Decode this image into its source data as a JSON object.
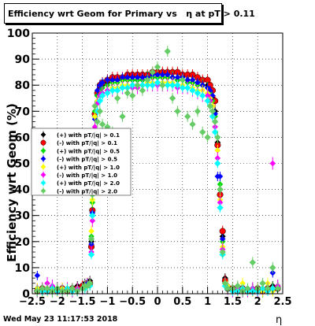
{
  "title": "Efficiency wrt Geom for Primary vs   η at pT > 0.11",
  "timestamp": "Wed May 23 11:17:53 2018",
  "chart_data": {
    "type": "scatter",
    "xlabel": "η",
    "ylabel": "Efficiency wrt Geom (%)",
    "xlim": [
      -2.5,
      2.5
    ],
    "ylim": [
      0,
      100
    ],
    "xticks": [
      -2.5,
      -2,
      -1.5,
      -1,
      -0.5,
      0,
      0.5,
      1,
      1.5,
      2,
      2.5
    ],
    "xtick_labels": [
      "−2.5",
      "−2",
      "−1.5",
      "−1",
      "−0.5",
      "0",
      "0.5",
      "1",
      "1.5",
      "2",
      "2.5"
    ],
    "yticks": [
      0,
      10,
      20,
      30,
      40,
      50,
      60,
      70,
      80,
      90,
      100
    ],
    "grid": true,
    "legend_position": "middle-left",
    "series": [
      {
        "name": "(+) with pT/|q| > 0.1",
        "color": "#000000",
        "x": [
          -2.4,
          -2.3,
          -2.2,
          -2.1,
          -2.0,
          -1.9,
          -1.8,
          -1.7,
          -1.6,
          -1.5,
          -1.45,
          -1.4,
          -1.35,
          -1.32,
          -1.3,
          -1.28,
          -1.25,
          -1.2,
          -1.15,
          -1.1,
          -1.0,
          -0.9,
          -0.8,
          -0.7,
          -0.6,
          -0.5,
          -0.4,
          -0.3,
          -0.2,
          -0.1,
          0.0,
          0.1,
          0.2,
          0.3,
          0.4,
          0.5,
          0.6,
          0.7,
          0.8,
          0.9,
          1.0,
          1.05,
          1.1,
          1.15,
          1.2,
          1.25,
          1.3,
          1.35,
          1.4,
          1.5,
          1.6,
          1.7,
          1.8,
          1.9,
          2.0,
          2.1,
          2.2,
          2.3,
          2.4
        ],
        "y": [
          2,
          1,
          2,
          1,
          1,
          1,
          2,
          2,
          3,
          3,
          4,
          4,
          5,
          20,
          30,
          50,
          68,
          76,
          79,
          80,
          81,
          82,
          82,
          82,
          82,
          82,
          82,
          82,
          82,
          83,
          83,
          83,
          83,
          83,
          82,
          82,
          82,
          81,
          81,
          80,
          80,
          78,
          75,
          70,
          58,
          40,
          22,
          6,
          3,
          2,
          2,
          2,
          1,
          2,
          1,
          2,
          2,
          3,
          3
        ]
      },
      {
        "name": "(-) with pT/|q| > 0.1",
        "color": "#ff0000",
        "x": [
          -2.4,
          -2.3,
          -2.2,
          -2.1,
          -2.0,
          -1.9,
          -1.8,
          -1.7,
          -1.6,
          -1.5,
          -1.45,
          -1.4,
          -1.35,
          -1.32,
          -1.3,
          -1.28,
          -1.25,
          -1.2,
          -1.15,
          -1.1,
          -1.0,
          -0.9,
          -0.8,
          -0.7,
          -0.6,
          -0.5,
          -0.4,
          -0.3,
          -0.2,
          -0.1,
          0.0,
          0.1,
          0.2,
          0.3,
          0.4,
          0.5,
          0.6,
          0.7,
          0.8,
          0.9,
          1.0,
          1.05,
          1.1,
          1.15,
          1.2,
          1.25,
          1.3,
          1.35,
          1.4,
          1.5,
          1.6,
          1.7,
          1.8,
          1.9,
          2.0,
          2.1,
          2.2,
          2.3,
          2.4
        ],
        "y": [
          1,
          2,
          1,
          2,
          1,
          2,
          1,
          2,
          2,
          3,
          3,
          4,
          4,
          18,
          32,
          49,
          69,
          77,
          80,
          81,
          82,
          83,
          83,
          83,
          84,
          84,
          84,
          84,
          84,
          85,
          85,
          85,
          85,
          85,
          85,
          84,
          84,
          84,
          83,
          82,
          82,
          80,
          78,
          74,
          57,
          38,
          24,
          5,
          2,
          2,
          1,
          2,
          1,
          1,
          2,
          1,
          2,
          2,
          2
        ]
      },
      {
        "name": "(+) with pT/|q| > 0.5",
        "color": "#00dd00",
        "x": [
          -2.4,
          -2.3,
          -2.2,
          -2.1,
          -2.0,
          -1.9,
          -1.8,
          -1.7,
          -1.6,
          -1.5,
          -1.45,
          -1.4,
          -1.35,
          -1.32,
          -1.3,
          -1.28,
          -1.25,
          -1.2,
          -1.15,
          -1.1,
          -1.0,
          -0.9,
          -0.8,
          -0.7,
          -0.6,
          -0.5,
          -0.4,
          -0.3,
          -0.2,
          -0.1,
          0.0,
          0.1,
          0.2,
          0.3,
          0.4,
          0.5,
          0.6,
          0.7,
          0.8,
          0.9,
          1.0,
          1.05,
          1.1,
          1.15,
          1.2,
          1.25,
          1.3,
          1.35,
          1.4,
          1.5,
          1.6,
          1.7,
          1.8,
          1.9,
          2.0,
          2.1,
          2.2,
          2.3,
          2.4
        ],
        "y": [
          1,
          1,
          2,
          1,
          2,
          1,
          2,
          1,
          2,
          2,
          3,
          3,
          4,
          22,
          35,
          53,
          70,
          76,
          78,
          79,
          80,
          81,
          81,
          82,
          82,
          82,
          82,
          82,
          83,
          83,
          83,
          83,
          83,
          83,
          82,
          82,
          81,
          81,
          80,
          80,
          79,
          77,
          74,
          68,
          60,
          42,
          20,
          4,
          2,
          1,
          2,
          1,
          1,
          2,
          1,
          1,
          2,
          2,
          3
        ]
      },
      {
        "name": "(-) with pT/|q| > 0.5",
        "color": "#0000ff",
        "x": [
          -2.4,
          -2.3,
          -2.2,
          -2.1,
          -2.0,
          -1.9,
          -1.8,
          -1.7,
          -1.6,
          -1.5,
          -1.45,
          -1.4,
          -1.35,
          -1.32,
          -1.3,
          -1.28,
          -1.25,
          -1.2,
          -1.15,
          -1.1,
          -1.0,
          -0.9,
          -0.8,
          -0.7,
          -0.6,
          -0.5,
          -0.4,
          -0.3,
          -0.2,
          -0.1,
          0.0,
          0.1,
          0.2,
          0.3,
          0.4,
          0.5,
          0.6,
          0.7,
          0.8,
          0.9,
          1.0,
          1.05,
          1.1,
          1.15,
          1.2,
          1.25,
          1.3,
          1.35,
          1.4,
          1.5,
          1.6,
          1.7,
          1.8,
          1.9,
          2.0,
          2.1,
          2.2,
          2.3,
          2.4
        ],
        "y": [
          7,
          1,
          2,
          1,
          1,
          2,
          1,
          2,
          1,
          2,
          3,
          4,
          4,
          19,
          31,
          48,
          67,
          78,
          80,
          81,
          82,
          82,
          82,
          83,
          83,
          83,
          83,
          83,
          83,
          84,
          84,
          84,
          84,
          83,
          83,
          83,
          82,
          82,
          81,
          80,
          79,
          78,
          76,
          69,
          45,
          45,
          21,
          4,
          2,
          2,
          1,
          2,
          1,
          1,
          1,
          2,
          2,
          8,
          2
        ]
      },
      {
        "name": "(+) with pT/|q| > 1.0",
        "color": "#ffff00",
        "x": [
          -2.4,
          -2.3,
          -2.2,
          -2.1,
          -2.0,
          -1.9,
          -1.8,
          -1.7,
          -1.6,
          -1.5,
          -1.45,
          -1.4,
          -1.35,
          -1.32,
          -1.3,
          -1.28,
          -1.25,
          -1.2,
          -1.15,
          -1.1,
          -1.0,
          -0.9,
          -0.8,
          -0.7,
          -0.6,
          -0.5,
          -0.4,
          -0.3,
          -0.2,
          -0.1,
          0.0,
          0.1,
          0.2,
          0.3,
          0.4,
          0.5,
          0.6,
          0.7,
          0.8,
          0.9,
          1.0,
          1.05,
          1.1,
          1.15,
          1.2,
          1.25,
          1.3,
          1.35,
          1.4,
          1.5,
          1.6,
          1.7,
          1.8,
          1.9,
          2.0,
          2.1,
          2.2,
          2.3,
          2.4
        ],
        "y": [
          2,
          1,
          1,
          2,
          1,
          2,
          1,
          1,
          2,
          2,
          3,
          3,
          4,
          24,
          36,
          54,
          68,
          74,
          76,
          77,
          78,
          79,
          79,
          80,
          80,
          80,
          80,
          80,
          81,
          81,
          81,
          81,
          81,
          81,
          80,
          80,
          79,
          79,
          78,
          78,
          77,
          75,
          72,
          66,
          55,
          36,
          18,
          4,
          3,
          2,
          1,
          4,
          1,
          1,
          2,
          1,
          4,
          1,
          2
        ]
      },
      {
        "name": "(-) with pT/|q| > 1.0",
        "color": "#ff00ff",
        "x": [
          -2.4,
          -2.3,
          -2.2,
          -2.1,
          -2.0,
          -1.9,
          -1.8,
          -1.7,
          -1.6,
          -1.5,
          -1.45,
          -1.4,
          -1.35,
          -1.32,
          -1.3,
          -1.28,
          -1.25,
          -1.2,
          -1.15,
          -1.1,
          -1.0,
          -0.9,
          -0.8,
          -0.7,
          -0.6,
          -0.5,
          -0.4,
          -0.3,
          -0.2,
          -0.1,
          0.0,
          0.1,
          0.2,
          0.3,
          0.4,
          0.5,
          0.6,
          0.7,
          0.8,
          0.9,
          1.0,
          1.05,
          1.1,
          1.15,
          1.2,
          1.25,
          1.3,
          1.35,
          1.4,
          1.5,
          1.6,
          1.7,
          1.8,
          1.9,
          2.0,
          2.1,
          2.2,
          2.3,
          2.4
        ],
        "y": [
          1,
          2,
          4,
          3,
          2,
          1,
          2,
          1,
          2,
          2,
          3,
          3,
          4,
          16,
          28,
          46,
          64,
          73,
          76,
          77,
          78,
          78,
          78,
          79,
          79,
          79,
          79,
          80,
          80,
          80,
          80,
          80,
          80,
          80,
          79,
          79,
          79,
          78,
          77,
          76,
          76,
          74,
          70,
          64,
          52,
          35,
          17,
          4,
          2,
          1,
          2,
          1,
          1,
          2,
          1,
          2,
          2,
          50,
          3
        ]
      },
      {
        "name": "(+) with pT/|q| > 2.0",
        "color": "#00ffff",
        "x": [
          -2.4,
          -2.3,
          -2.2,
          -2.1,
          -2.0,
          -1.9,
          -1.8,
          -1.7,
          -1.6,
          -1.5,
          -1.45,
          -1.4,
          -1.35,
          -1.32,
          -1.3,
          -1.28,
          -1.25,
          -1.2,
          -1.15,
          -1.1,
          -1.0,
          -0.9,
          -0.8,
          -0.7,
          -0.6,
          -0.5,
          -0.4,
          -0.3,
          -0.2,
          -0.1,
          0.0,
          0.1,
          0.2,
          0.3,
          0.4,
          0.5,
          0.6,
          0.7,
          0.8,
          0.9,
          1.0,
          1.05,
          1.1,
          1.15,
          1.2,
          1.25,
          1.3,
          1.35,
          1.4,
          1.5,
          1.6,
          1.7,
          1.8,
          1.9,
          2.0,
          2.1,
          2.2,
          2.3,
          2.4
        ],
        "y": [
          1,
          1,
          1,
          2,
          1,
          1,
          2,
          1,
          1,
          2,
          2,
          3,
          3,
          15,
          30,
          40,
          60,
          70,
          74,
          76,
          77,
          78,
          78,
          79,
          79,
          80,
          80,
          80,
          80,
          80,
          81,
          80,
          80,
          80,
          80,
          79,
          79,
          78,
          77,
          76,
          74,
          72,
          68,
          62,
          50,
          33,
          15,
          3,
          2,
          1,
          1,
          2,
          1,
          1,
          1,
          2,
          1,
          2,
          2
        ]
      },
      {
        "name": "(-) with pT/|q| > 2.0",
        "color": "#66cc66",
        "x": [
          -2.4,
          -2.3,
          -2.2,
          -2.1,
          -2.0,
          -1.9,
          -1.8,
          -1.7,
          -1.6,
          -1.5,
          -1.45,
          -1.4,
          -1.35,
          -1.32,
          -1.3,
          -1.28,
          -1.25,
          -1.2,
          -1.15,
          -1.1,
          -1.0,
          -0.9,
          -0.8,
          -0.7,
          -0.6,
          -0.5,
          -0.4,
          -0.3,
          -0.2,
          -0.1,
          0.0,
          0.1,
          0.2,
          0.3,
          0.4,
          0.5,
          0.6,
          0.7,
          0.8,
          0.9,
          1.0,
          1.05,
          1.1,
          1.15,
          1.2,
          1.25,
          1.3,
          1.35,
          1.4,
          1.5,
          1.6,
          1.7,
          1.8,
          1.9,
          2.0,
          2.1,
          2.2,
          2.3,
          2.4
        ],
        "y": [
          1,
          2,
          2,
          1,
          2,
          1,
          1,
          2,
          1,
          2,
          3,
          3,
          4,
          21,
          38,
          50,
          72,
          66,
          70,
          65,
          64,
          62,
          75,
          68,
          77,
          76,
          80,
          78,
          82,
          85,
          87,
          80,
          93,
          75,
          70,
          82,
          68,
          65,
          70,
          62,
          60,
          72,
          70,
          66,
          60,
          40,
          16,
          4,
          2,
          2,
          3,
          1,
          2,
          12,
          2,
          4,
          2,
          10,
          2
        ]
      }
    ]
  }
}
